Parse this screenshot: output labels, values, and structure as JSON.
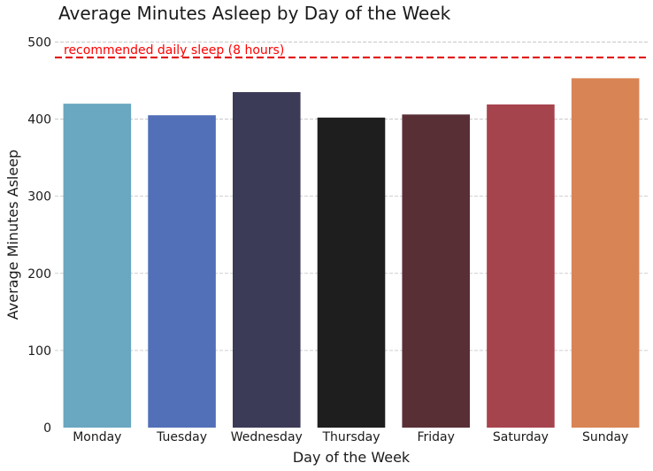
{
  "chart_data": {
    "type": "bar",
    "title": "Average Minutes Asleep by Day of the Week",
    "xlabel": "Day of the Week",
    "ylabel": "Average Minutes Asleep",
    "categories": [
      "Monday",
      "Tuesday",
      "Wednesday",
      "Thursday",
      "Friday",
      "Saturday",
      "Sunday"
    ],
    "values": [
      420,
      405,
      435,
      402,
      406,
      419,
      453
    ],
    "colors": [
      "#6aa7c0",
      "#5270b8",
      "#3b3a57",
      "#1e1e1e",
      "#592f36",
      "#a6444e",
      "#d98455"
    ],
    "ylim": [
      0,
      520
    ],
    "yticks": [
      0,
      100,
      200,
      300,
      400,
      500
    ],
    "grid": true,
    "reference_line": {
      "value": 480,
      "label": "recommended daily sleep (8 hours)",
      "color": "#e00000"
    }
  }
}
